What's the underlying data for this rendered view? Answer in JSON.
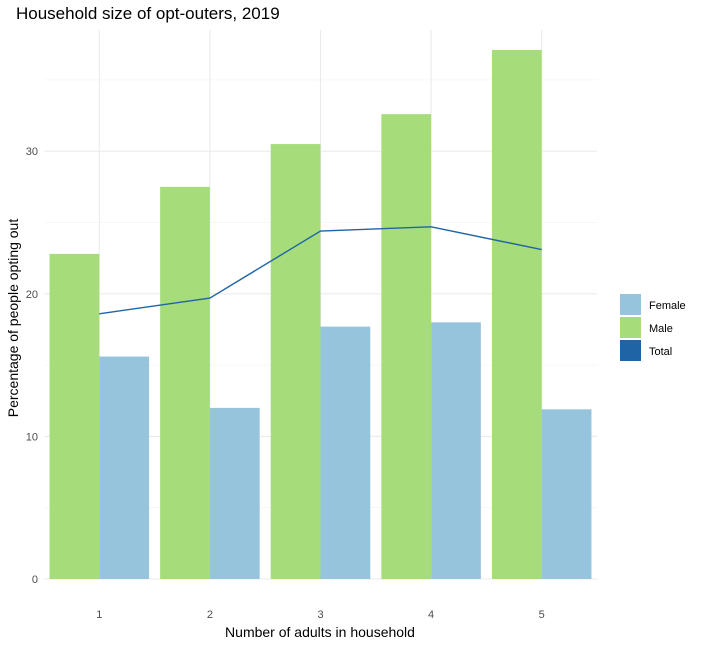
{
  "chart_data": {
    "type": "bar",
    "title": "Household size of opt-outers, 2019",
    "xlabel": "Number of adults in household",
    "ylabel": "Percentage of people opting out",
    "categories": [
      "1",
      "2",
      "3",
      "4",
      "5"
    ],
    "series": [
      {
        "name": "Male",
        "type": "bar",
        "color": "#a6dc7a",
        "values": [
          22.8,
          27.5,
          30.5,
          32.6,
          37.1
        ]
      },
      {
        "name": "Female",
        "type": "bar",
        "color": "#97c4dd",
        "values": [
          15.6,
          12.0,
          17.7,
          18.0,
          11.9
        ]
      },
      {
        "name": "Total",
        "type": "line",
        "color": "#1f65a6",
        "values": [
          18.6,
          19.7,
          24.4,
          24.7,
          23.1
        ]
      }
    ],
    "y_ticks": [
      "0",
      "10",
      "20",
      "30"
    ],
    "ylim": [
      0,
      38.5
    ],
    "grid": true,
    "legend": {
      "position": "right",
      "items": [
        "Female",
        "Male",
        "Total"
      ]
    }
  }
}
